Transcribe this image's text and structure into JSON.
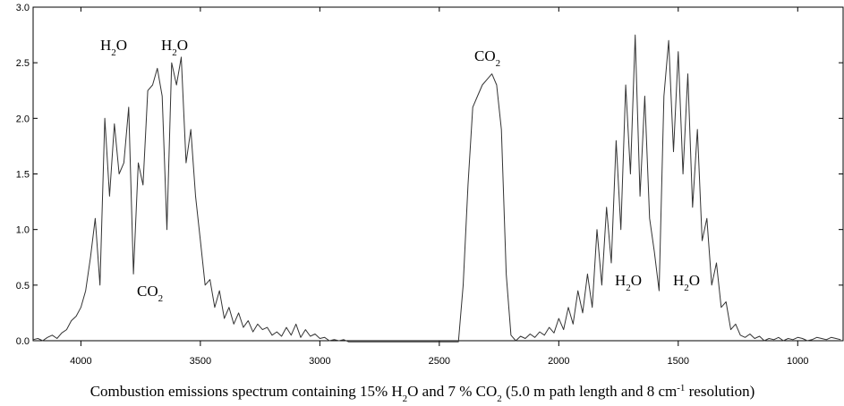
{
  "chart_data": {
    "type": "line",
    "title_parts": [
      "Combustion emissions spectrum containing 15% H",
      "2",
      "O and 7 % CO",
      "2",
      " (5.0 m path length and 8 cm",
      "-1",
      " resolution)"
    ],
    "annotations": [
      [
        "H",
        "2",
        "O"
      ],
      [
        "H",
        "2",
        "O"
      ],
      [
        "CO",
        "2"
      ],
      [
        "CO",
        "2"
      ],
      [
        "H",
        "2",
        "O"
      ],
      [
        "H",
        "2",
        "O"
      ]
    ],
    "x": [
      4200,
      4180,
      4160,
      4140,
      4120,
      4100,
      4080,
      4060,
      4040,
      4020,
      4000,
      3980,
      3960,
      3940,
      3920,
      3900,
      3880,
      3860,
      3840,
      3820,
      3800,
      3780,
      3760,
      3740,
      3720,
      3700,
      3680,
      3660,
      3640,
      3620,
      3600,
      3580,
      3560,
      3540,
      3520,
      3500,
      3480,
      3460,
      3440,
      3420,
      3400,
      3380,
      3360,
      3340,
      3320,
      3300,
      3280,
      3260,
      3240,
      3220,
      3200,
      3180,
      3160,
      3140,
      3120,
      3100,
      3080,
      3060,
      3040,
      3020,
      3000,
      2980,
      2960,
      2940,
      2920,
      2900,
      2880,
      2860,
      2840,
      2820,
      2800,
      2780,
      2760,
      2740,
      2720,
      2700,
      2680,
      2660,
      2640,
      2620,
      2600,
      2580,
      2560,
      2540,
      2520,
      2500,
      2480,
      2460,
      2440,
      2420,
      2400,
      2380,
      2360,
      2340,
      2320,
      2300,
      2280,
      2260,
      2240,
      2220,
      2200,
      2180,
      2160,
      2140,
      2120,
      2100,
      2080,
      2060,
      2040,
      2020,
      2000,
      1980,
      1960,
      1940,
      1920,
      1900,
      1880,
      1860,
      1840,
      1820,
      1800,
      1780,
      1760,
      1740,
      1720,
      1700,
      1680,
      1660,
      1640,
      1620,
      1600,
      1580,
      1560,
      1540,
      1520,
      1500,
      1480,
      1460,
      1440,
      1420,
      1400,
      1380,
      1360,
      1340,
      1320,
      1300,
      1280,
      1260,
      1240,
      1220,
      1200,
      1180,
      1160,
      1140,
      1120,
      1100,
      1080,
      1060,
      1040,
      1020,
      1000,
      980,
      960,
      940,
      920,
      900,
      880,
      860,
      840,
      820
    ],
    "series": [
      {
        "color": "#333333",
        "values": [
          0.01,
          0.02,
          0,
          0.03,
          0.05,
          0.02,
          0.07,
          0.1,
          0.18,
          0.22,
          0.3,
          0.45,
          0.75,
          1.1,
          0.5,
          2.0,
          1.3,
          1.95,
          1.5,
          1.6,
          2.1,
          0.6,
          1.6,
          1.4,
          2.25,
          2.3,
          2.45,
          2.2,
          1.0,
          2.5,
          2.3,
          2.55,
          1.6,
          1.9,
          1.3,
          0.9,
          0.5,
          0.55,
          0.3,
          0.45,
          0.2,
          0.3,
          0.15,
          0.25,
          0.12,
          0.18,
          0.08,
          0.15,
          0.1,
          0.12,
          0.05,
          0.08,
          0.04,
          0.12,
          0.05,
          0.15,
          0.03,
          0.1,
          0.04,
          0.06,
          0.02,
          0.03,
          0,
          0.01,
          0,
          0.01,
          -0.01,
          -0.01,
          -0.01,
          -0.01,
          -0.01,
          -0.01,
          -0.01,
          -0.01,
          -0.01,
          -0.01,
          -0.01,
          -0.01,
          -0.01,
          -0.01,
          -0.01,
          -0.01,
          -0.01,
          -0.01,
          -0.01,
          -0.01,
          -0.01,
          -0.01,
          -0.01,
          -0.01,
          0.5,
          1.4,
          2.1,
          2.2,
          2.3,
          2.35,
          2.4,
          2.3,
          1.9,
          0.6,
          0.05,
          0,
          0.04,
          0.02,
          0.06,
          0.03,
          0.08,
          0.05,
          0.12,
          0.07,
          0.2,
          0.1,
          0.3,
          0.15,
          0.45,
          0.25,
          0.6,
          0.3,
          1.0,
          0.5,
          1.2,
          0.7,
          1.8,
          1.0,
          2.3,
          1.5,
          2.75,
          1.3,
          2.2,
          1.1,
          0.8,
          0.45,
          2.2,
          2.7,
          1.7,
          2.6,
          1.5,
          2.4,
          1.2,
          1.9,
          0.9,
          1.1,
          0.5,
          0.7,
          0.3,
          0.35,
          0.1,
          0.15,
          0.05,
          0.03,
          0.06,
          0.02,
          0.04,
          0,
          0.02,
          0.01,
          0.03,
          0,
          0.02,
          0.01,
          0.03,
          0.02,
          0,
          0.01,
          0.03,
          0.02,
          0.01,
          0.03,
          0.02,
          0.01
        ]
      }
    ],
    "xlim": [
      4200,
      810
    ],
    "ylim": [
      0,
      3
    ],
    "xticks": [
      4000,
      3500,
      3000,
      2500,
      2000,
      1500,
      1000
    ],
    "yticks": [
      {
        "value": 0,
        "label": "0.0"
      },
      {
        "value": 0.5,
        "label": "0.5"
      },
      {
        "value": 1,
        "label": "1.0"
      },
      {
        "value": 1.5,
        "label": "1.5"
      },
      {
        "value": 2,
        "label": "2.0"
      },
      {
        "value": 2.5,
        "label": "2.5"
      },
      {
        "value": 3,
        "label": "3.0"
      }
    ]
  }
}
